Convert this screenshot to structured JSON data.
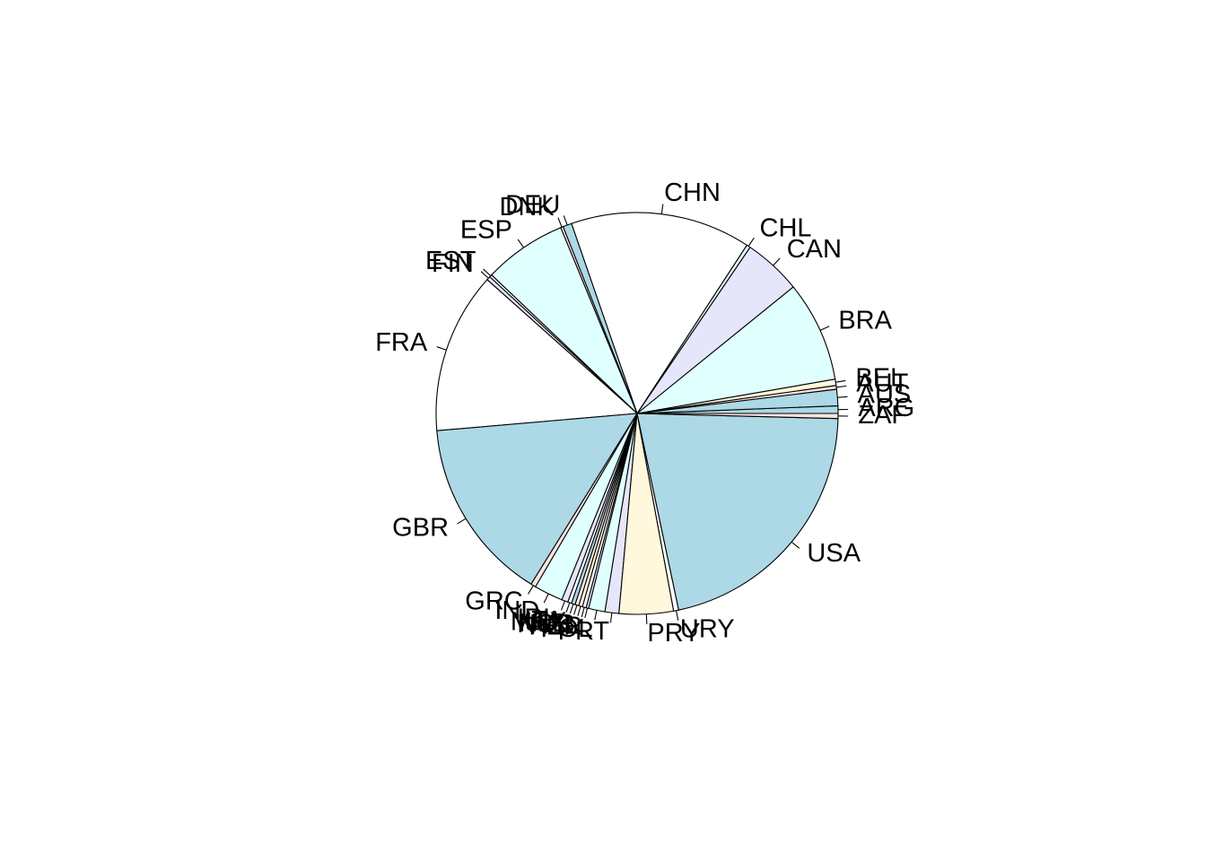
{
  "chart_data": {
    "type": "pie",
    "title": "",
    "direction": "counterclockwise",
    "start": "3 o'clock",
    "palette": [
      "#FFFFFF",
      "#E6E6FA",
      "#E0FFFF",
      "#ADD8E6",
      "#FFE4E1",
      "#FFF8DC"
    ],
    "slices": [
      {
        "label": "ARG",
        "value": 0.6,
        "color": "#ADD8E6"
      },
      {
        "label": "AUS",
        "value": 1.3,
        "color": "#ADD8E6"
      },
      {
        "label": "AUT",
        "value": 0.3,
        "color": "#FFE4E1"
      },
      {
        "label": "BEL",
        "value": 0.5,
        "color": "#FFF8DC"
      },
      {
        "label": "BRA",
        "value": 8.0,
        "color": "#E0FFFF"
      },
      {
        "label": "CAN",
        "value": 4.6,
        "color": "#E6E6FA"
      },
      {
        "label": "CHL",
        "value": 0.3,
        "color": "#E0FFFF"
      },
      {
        "label": "CHN",
        "value": 14.3,
        "color": "#FFFFFF"
      },
      {
        "label": "DEU",
        "value": 0.7,
        "color": "#ADD8E6"
      },
      {
        "label": "DNK",
        "value": 0.2,
        "color": "#FFE4E1"
      },
      {
        "label": "ESP",
        "value": 6.6,
        "color": "#E0FFFF"
      },
      {
        "label": "EST",
        "value": 0.2,
        "color": "#FFFFFF"
      },
      {
        "label": "FIN",
        "value": 0.3,
        "color": "#E6E6FA"
      },
      {
        "label": "FRA",
        "value": 12.8,
        "color": "#FFFFFF"
      },
      {
        "label": "GBR",
        "value": 14.6,
        "color": "#ADD8E6"
      },
      {
        "label": "GRC",
        "value": 0.4,
        "color": "#FFE4E1"
      },
      {
        "label": "IND",
        "value": 2.3,
        "color": "#E0FFFF"
      },
      {
        "label": "IRL",
        "value": 0.5,
        "color": "#E6E6FA"
      },
      {
        "label": "ITA",
        "value": 0.3,
        "color": "#FFFFFF"
      },
      {
        "label": "MEX",
        "value": 0.3,
        "color": "#ADD8E6"
      },
      {
        "label": "NLD",
        "value": 0.3,
        "color": "#FFE4E1"
      },
      {
        "label": "NOR",
        "value": 0.3,
        "color": "#FFF8DC"
      },
      {
        "label": "NZL",
        "value": 0.3,
        "color": "#FFFFFF"
      },
      {
        "label": "PER",
        "value": 0.2,
        "color": "#E6E6FA"
      },
      {
        "label": "POL",
        "value": 1.3,
        "color": "#E0FFFF"
      },
      {
        "label": "PRT",
        "value": 1.1,
        "color": "#E6E6FA"
      },
      {
        "label": "PRY",
        "value": 4.3,
        "color": "#FFF8DC"
      },
      {
        "label": "URY",
        "value": 0.4,
        "color": "#FFFFFF"
      },
      {
        "label": "USA",
        "value": 21.0,
        "color": "#ADD8E6"
      },
      {
        "label": "ZAF",
        "value": 0.4,
        "color": "#FFE4E1"
      }
    ]
  }
}
